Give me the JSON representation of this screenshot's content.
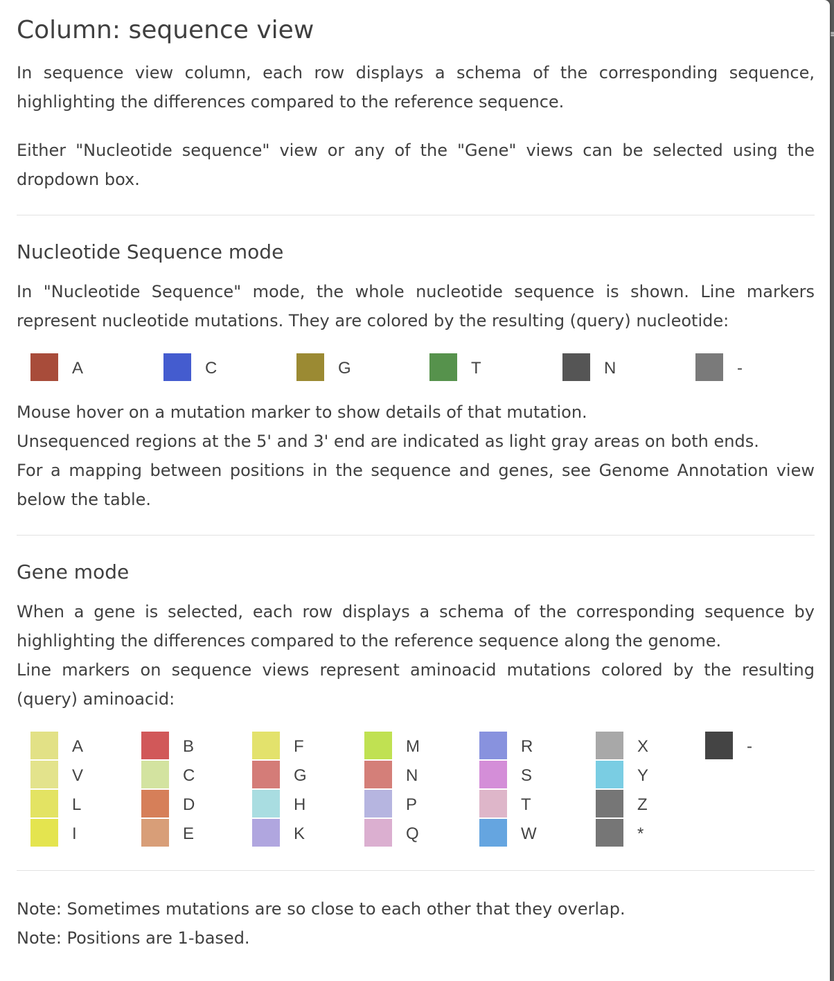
{
  "title": "Column: sequence view",
  "intro": {
    "p1": "In sequence view column, each row displays a schema of the corresponding sequence, highlighting the differences compared to the reference sequence.",
    "p2": "Either \"Nucleotide sequence\" view or any of the \"Gene\" views can be selected using the dropdown box."
  },
  "nucleotide": {
    "heading": "Nucleotide Sequence mode",
    "desc": "In \"Nucleotide Sequence\" mode, the whole nucleotide sequence is shown. Line markers represent nucleotide mutations. They are colored by the resulting (query) nucleotide:",
    "legend": [
      {
        "label": "A",
        "color": "#a84c3a"
      },
      {
        "label": "C",
        "color": "#445ccf"
      },
      {
        "label": "G",
        "color": "#9b8a33"
      },
      {
        "label": "T",
        "color": "#56924c"
      },
      {
        "label": "N",
        "color": "#555555"
      },
      {
        "label": "-",
        "color": "#7a7a7a"
      }
    ],
    "notes": [
      "Mouse hover on a mutation marker to show details of that mutation.",
      "Unsequenced regions at the 5' and 3' end are indicated as light gray areas on both ends.",
      "For a mapping between positions in the sequence and genes, see Genome Annotation view below the table."
    ]
  },
  "gene": {
    "heading": "Gene mode",
    "desc1": "When a gene is selected, each row displays a schema of the corresponding sequence by highlighting the differences compared to the reference sequence along the genome.",
    "desc2": "Line markers on sequence views represent aminoacid mutations colored by the resulting (query) aminoacid:",
    "legend_columns": [
      [
        {
          "label": "A",
          "color": "#e2e186"
        },
        {
          "label": "V",
          "color": "#e3e38c"
        },
        {
          "label": "L",
          "color": "#e3e363"
        },
        {
          "label": "I",
          "color": "#e4e44f"
        }
      ],
      [
        {
          "label": "B",
          "color": "#d15859"
        },
        {
          "label": "C",
          "color": "#d3e3a0"
        },
        {
          "label": "D",
          "color": "#d67f59"
        },
        {
          "label": "E",
          "color": "#d89e78"
        }
      ],
      [
        {
          "label": "F",
          "color": "#e3e26c"
        },
        {
          "label": "G",
          "color": "#d47c78"
        },
        {
          "label": "H",
          "color": "#a9dde1"
        },
        {
          "label": "K",
          "color": "#b0a6df"
        }
      ],
      [
        {
          "label": "M",
          "color": "#c0e152"
        },
        {
          "label": "N",
          "color": "#d47f79"
        },
        {
          "label": "P",
          "color": "#b6b5e0"
        },
        {
          "label": "Q",
          "color": "#dbafd0"
        }
      ],
      [
        {
          "label": "R",
          "color": "#8892de"
        },
        {
          "label": "S",
          "color": "#d48ed8"
        },
        {
          "label": "T",
          "color": "#deb6c9"
        },
        {
          "label": "W",
          "color": "#65a5e0"
        }
      ],
      [
        {
          "label": "X",
          "color": "#a8a8a8"
        },
        {
          "label": "Y",
          "color": "#7acde3"
        },
        {
          "label": "Z",
          "color": "#767676"
        },
        {
          "label": "*",
          "color": "#767676"
        }
      ],
      [
        {
          "label": "-",
          "color": "#444444"
        }
      ]
    ]
  },
  "footer": {
    "note1": "Note: Sometimes mutations are so close to each other that they overlap.",
    "note2": "Note: Positions are 1-based."
  }
}
